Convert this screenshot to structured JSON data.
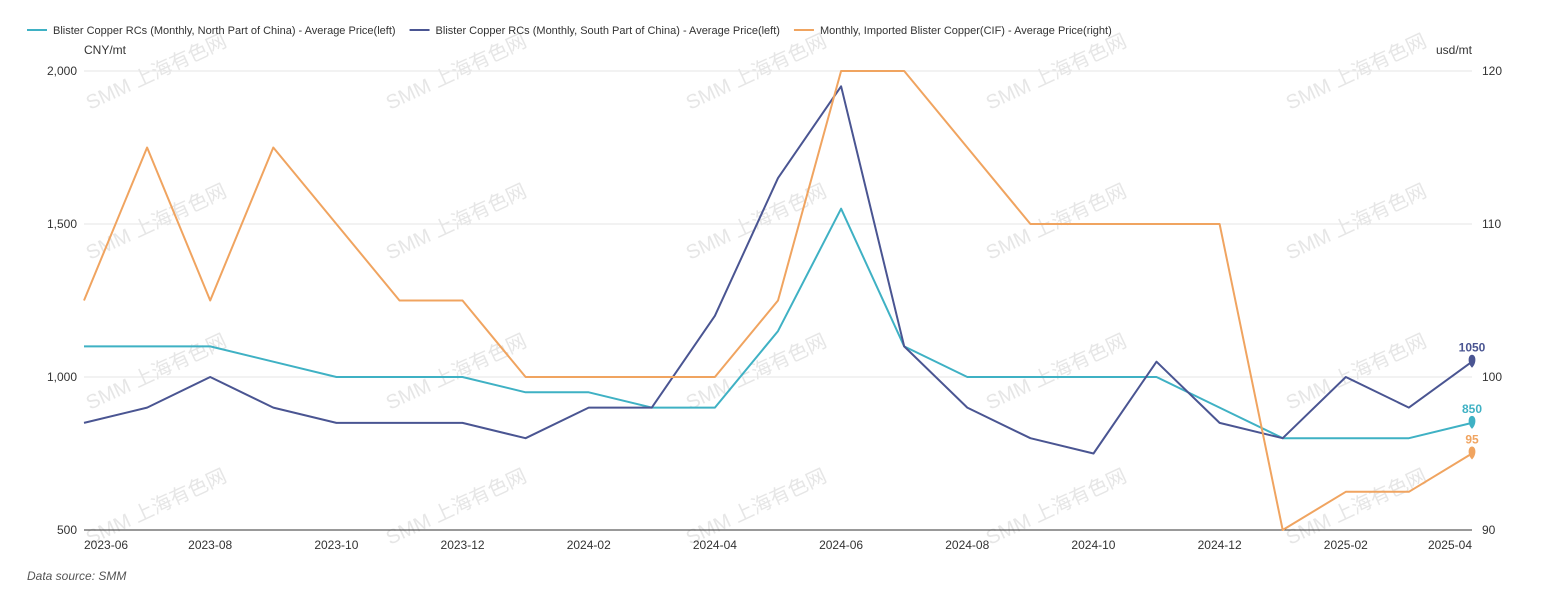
{
  "source": "Data source:  SMM",
  "watermark": "SMM 上海有色网",
  "chart_data": {
    "type": "line",
    "x": [
      "2023-06",
      "2023-07",
      "2023-08",
      "2023-09",
      "2023-10",
      "2023-11",
      "2023-12",
      "2024-01",
      "2024-02",
      "2024-03",
      "2024-04",
      "2024-05",
      "2024-06",
      "2024-07",
      "2024-08",
      "2024-09",
      "2024-10",
      "2024-11",
      "2024-12",
      "2025-01",
      "2025-02",
      "2025-03",
      "2025-04"
    ],
    "x_tick_labels": [
      "2023-06",
      "2023-08",
      "2023-10",
      "2023-12",
      "2024-02",
      "2024-04",
      "2024-06",
      "2024-08",
      "2024-10",
      "2024-12",
      "2025-02",
      "2025-04"
    ],
    "left_axis": {
      "unit": "CNY/mt",
      "range": [
        500,
        2000
      ],
      "ticks": [
        500,
        1000,
        1500,
        2000
      ],
      "tick_labels": [
        "500",
        "1,000",
        "1,500",
        "2,000"
      ]
    },
    "right_axis": {
      "unit": "usd/mt",
      "range": [
        90,
        120
      ],
      "ticks": [
        90,
        100,
        110,
        120
      ],
      "tick_labels": [
        "90",
        "100",
        "110",
        "120"
      ]
    },
    "grid": true,
    "legend_position": "top-left",
    "series": [
      {
        "name": "Blister Copper RCs (Monthly, North Part of China) - Average Price(left)",
        "axis": "left",
        "color": "#3fb1c4",
        "values": [
          1100,
          1100,
          1100,
          1050,
          1000,
          1000,
          1000,
          950,
          950,
          900,
          900,
          1150,
          1550,
          1100,
          1000,
          1000,
          1000,
          1000,
          900,
          800,
          800,
          800,
          850
        ],
        "end_label": "850"
      },
      {
        "name": "Blister Copper RCs (Monthly, South Part of China) - Average Price(left)",
        "axis": "left",
        "color": "#4a5592",
        "values": [
          850,
          900,
          1000,
          900,
          850,
          850,
          850,
          800,
          900,
          900,
          1200,
          1650,
          1950,
          1100,
          900,
          800,
          750,
          1050,
          850,
          800,
          1000,
          900,
          1050
        ],
        "end_label": "1050"
      },
      {
        "name": "Monthly, Imported Blister Copper(CIF) - Average Price(right)",
        "axis": "right",
        "color": "#f0a460",
        "values": [
          105,
          115,
          105,
          115,
          110,
          105,
          105,
          100,
          100,
          100,
          100,
          105,
          120,
          120,
          115,
          110,
          110,
          110,
          110,
          90,
          92.5,
          92.5,
          95
        ],
        "end_label": "95"
      }
    ]
  }
}
